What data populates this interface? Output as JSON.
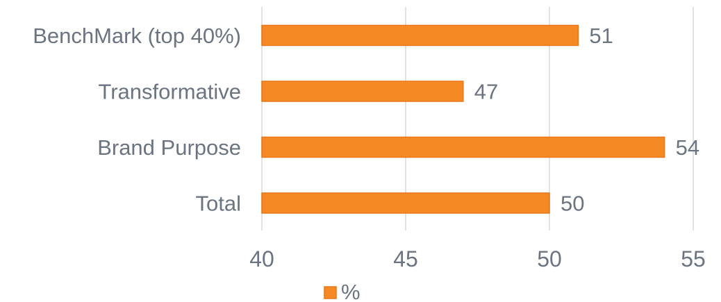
{
  "chart_data": {
    "type": "bar",
    "orientation": "horizontal",
    "categories": [
      "BenchMark (top 40%)",
      "Transformative",
      "Brand Purpose",
      "Total"
    ],
    "series": [
      {
        "name": "%",
        "values": [
          51,
          47,
          54,
          50
        ],
        "color": "#f58a25",
        "border_color": "#e8761a"
      }
    ],
    "xlim": [
      40,
      55
    ],
    "xticks": [
      40,
      45,
      50,
      55
    ],
    "grid": true,
    "legend_position": "bottom",
    "title": "",
    "xlabel": "",
    "ylabel": ""
  }
}
